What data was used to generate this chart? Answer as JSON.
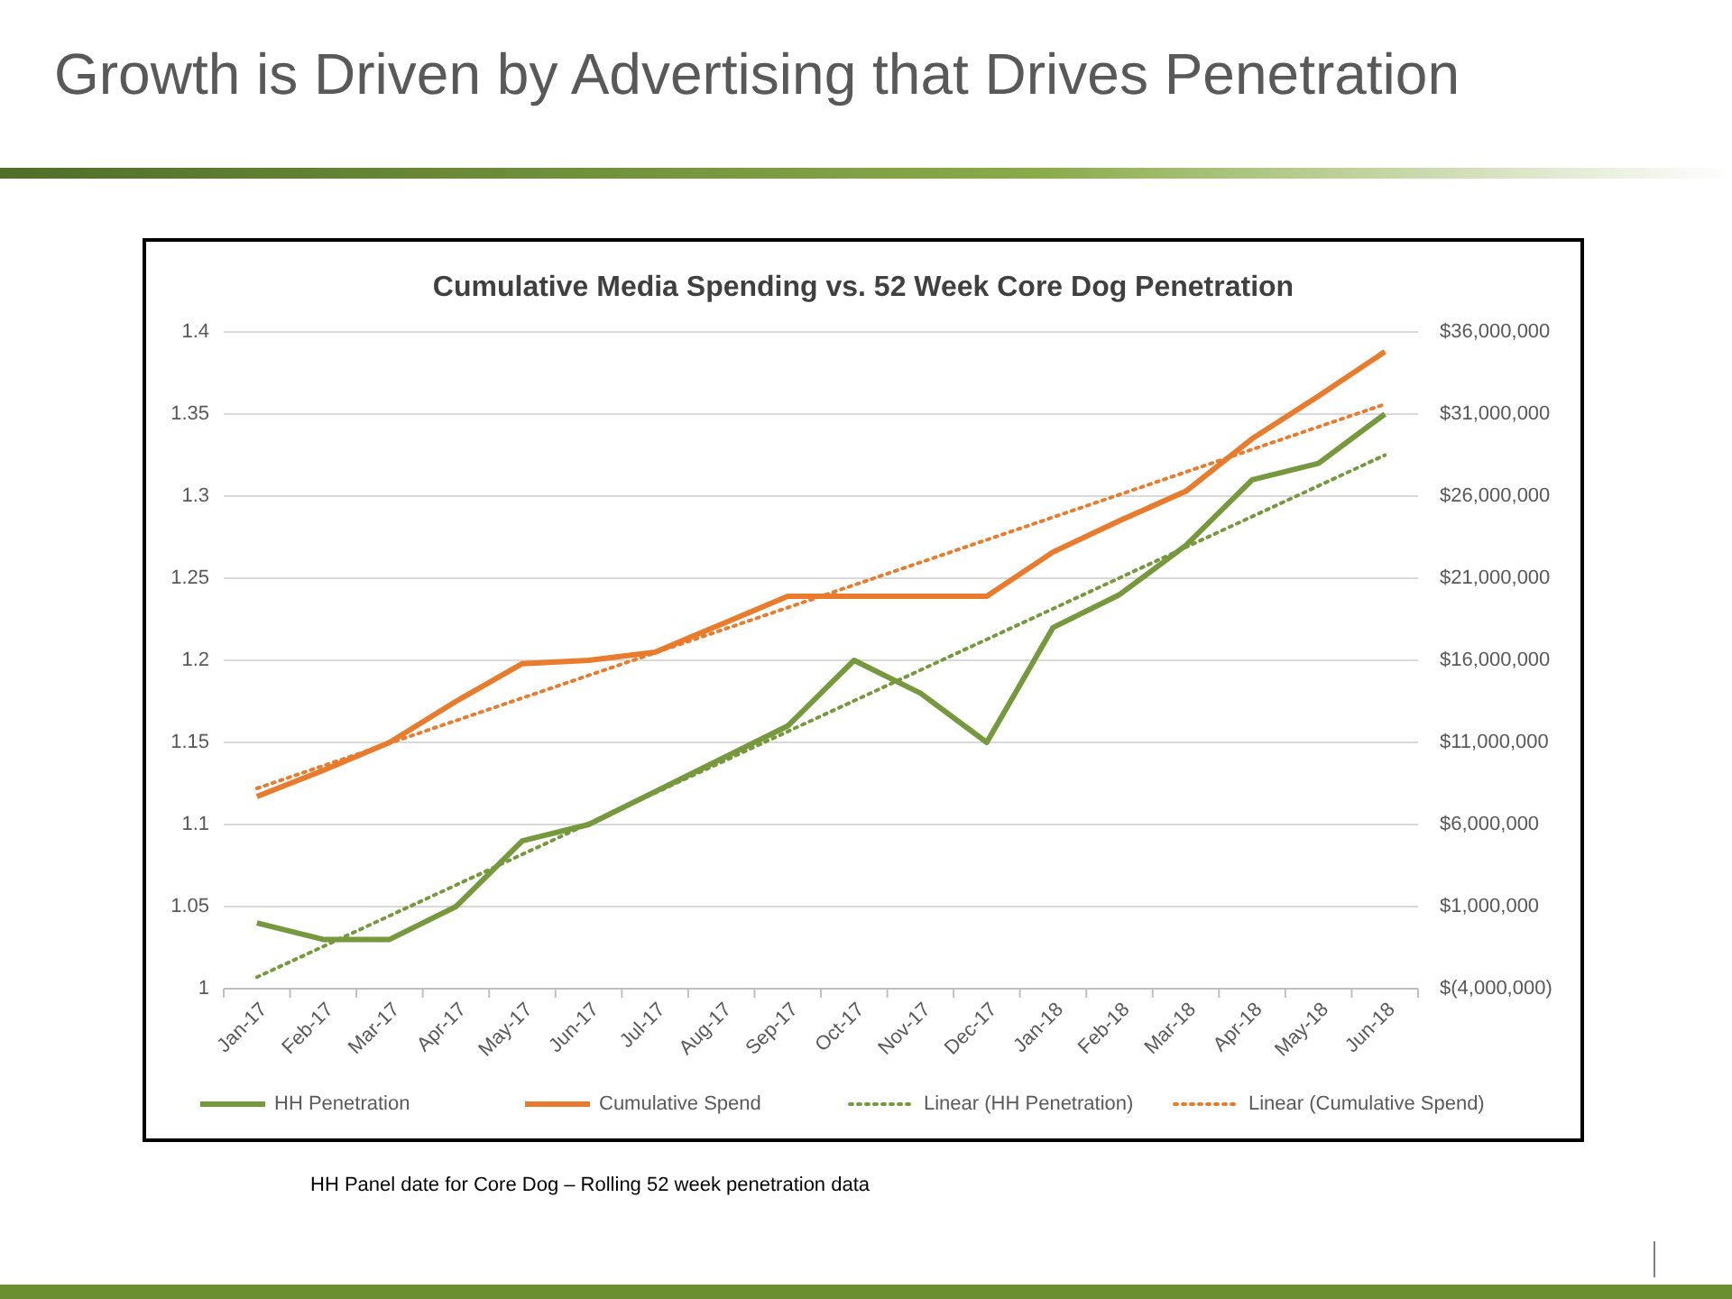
{
  "chart_data": {
    "type": "line",
    "title": "Growth is Driven by Advertising that Drives Penetration",
    "subtitle": "Cumulative Media Spending vs. 52 Week Core Dog Penetration",
    "categories": [
      "Jan-17",
      "Feb-17",
      "Mar-17",
      "Apr-17",
      "May-17",
      "Jun-17",
      "Jul-17",
      "Aug-17",
      "Sep-17",
      "Oct-17",
      "Nov-17",
      "Dec-17",
      "Jan-18",
      "Feb-18",
      "Mar-18",
      "Apr-18",
      "May-18",
      "Jun-18"
    ],
    "series": [
      {
        "name": "HH Penetration",
        "color": "#77993d",
        "values": [
          1.04,
          1.03,
          1.03,
          1.05,
          1.09,
          1.1,
          1.12,
          1.14,
          1.16,
          1.2,
          1.18,
          1.15,
          1.22,
          1.24,
          1.27,
          1.31,
          1.32,
          1.35
        ]
      },
      {
        "name": "Cumulative Spend",
        "color": "#e87b2c",
        "axis": "y2",
        "values": [
          7700000,
          9300000,
          11000000,
          13500000,
          15800000,
          16000000,
          16500000,
          18200000,
          19900000,
          19900000,
          19900000,
          19900000,
          22600000,
          24500000,
          26300000,
          29500000,
          32100000,
          34800000
        ]
      },
      {
        "name": "Linear (HH Penetration)",
        "color": "#77993d",
        "line_style": "dotted",
        "x": [
          "Jan-17",
          "Jun-18"
        ],
        "values": [
          1.007,
          1.325
        ]
      },
      {
        "name": "Linear (Cumulative Spend)",
        "color": "#e87b2c",
        "line_style": "dotted",
        "axis": "y2",
        "x": [
          "Jan-17",
          "Jun-18"
        ],
        "values": [
          8200000,
          31600000
        ]
      }
    ],
    "ylim": [
      1,
      1.4
    ],
    "yticks": [
      {
        "value": 1,
        "label": "1"
      },
      1.05,
      {
        "value": 1.1,
        "label": "1.1"
      },
      1.15,
      {
        "value": 1.2,
        "label": "1.2"
      },
      1.25,
      {
        "value": 1.3,
        "label": "1.3"
      },
      1.35,
      {
        "value": 1.4,
        "label": "1.4"
      }
    ],
    "y2lim": [
      -4000000,
      36000000
    ],
    "y2ticks": [
      {
        "value": -4000000,
        "label": "$(4,000,000)"
      },
      {
        "value": 1000000,
        "label": "$1,000,000"
      },
      {
        "value": 6000000,
        "label": "$6,000,000"
      },
      {
        "value": 11000000,
        "label": "$11,000,000"
      },
      {
        "value": 16000000,
        "label": "$16,000,000"
      },
      {
        "value": 21000000,
        "label": "$21,000,000"
      },
      {
        "value": 26000000,
        "label": "$26,000,000"
      },
      {
        "value": 31000000,
        "label": "$31,000,000"
      },
      {
        "value": 36000000,
        "label": "$36,000,000"
      }
    ],
    "grid": "y",
    "legend": "bottom",
    "marker": "none",
    "annotations": [
      "HH Panel date for Core Dog – Rolling 52 week penetration data"
    ]
  }
}
